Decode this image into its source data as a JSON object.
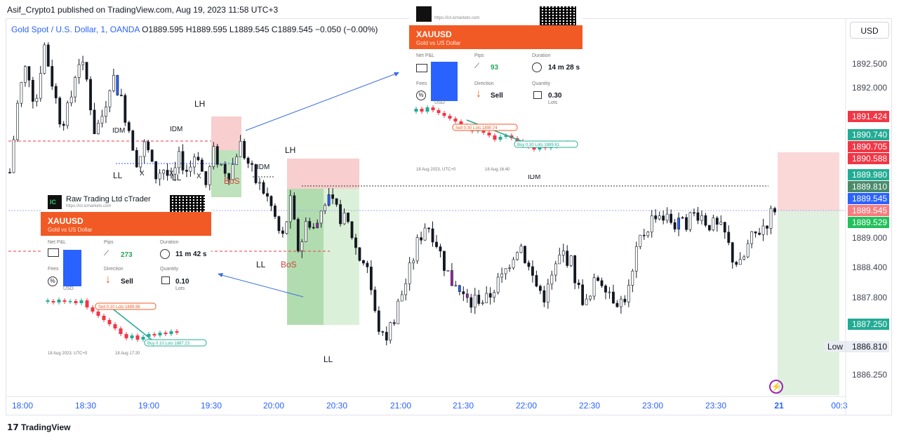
{
  "header": {
    "published": "Asif_Crypto1 published on TradingView.com, Aug 19, 2023 11:58 UTC+3",
    "symbol": "Gold Spot / U.S. Dollar, 1, OANDA",
    "ohlc": "O1889.595  H1889.595  L1889.545  C1889.545  −0.050 (−0.00%)",
    "currency_button": "USD"
  },
  "footer": {
    "brand": "TradingView"
  },
  "colors": {
    "up": "#ffffff",
    "down": "#131722",
    "purple": "#9c27b0",
    "blue": "#2962ff",
    "red_zone": "#f7c9c9",
    "green_zone": "#b7dfb5",
    "sell_red": "#f23645",
    "buy_green": "#22ab94"
  },
  "chart_data": {
    "type": "candlestick",
    "symbol": "XAUUSD 1m",
    "ylim": [
      1885.8,
      1893.3
    ],
    "x_ticks": [
      "18:00",
      "18:30",
      "19:00",
      "19:30",
      "20:00",
      "20:30",
      "21:00",
      "21:30",
      "22:00",
      "22:30",
      "23:00",
      "23:30",
      "21",
      "00:3"
    ],
    "y_ticks": [
      "1892.500",
      "1892.000",
      "1889.000",
      "1888.400",
      "1887.800",
      "1886.250"
    ],
    "price_labels": [
      {
        "text": "1891.424",
        "color": "#f23645"
      },
      {
        "text": "1890.740",
        "color": "#22ab94"
      },
      {
        "text": "1890.705",
        "color": "#f23645"
      },
      {
        "text": "1890.588",
        "color": "#f23645"
      },
      {
        "text": "1889.980",
        "color": "#22ab94"
      },
      {
        "text": "1889.810",
        "color": "#4a8a6a"
      },
      {
        "text": "1889.545",
        "color": "#2962ff"
      },
      {
        "text": "1889.545",
        "color": "#f77c80"
      },
      {
        "text": "1889.529",
        "color": "#22c05a"
      },
      {
        "text": "1887.250",
        "color": "#22ab94"
      },
      {
        "text": "1886.810",
        "color": "#e9ecf2",
        "prefix": "Low"
      }
    ],
    "annotations": [
      "IDM",
      "IDM",
      "LH",
      "LL",
      "X",
      "X",
      "LL",
      "X",
      "BoS",
      "IDM",
      "LH",
      "LL",
      "BoS",
      "LL",
      "IDM"
    ],
    "close_path": [
      1890.3,
      1891.8,
      1892.5,
      1891.6,
      1892.9,
      1892.1,
      1891.3,
      1891.6,
      1892.6,
      1892.2,
      1891.1,
      1891.5,
      1892.3,
      1891.8,
      1891.2,
      1890.5,
      1890.9,
      1890.2,
      1890.4,
      1890.1,
      1890.6,
      1890.3,
      1890.8,
      1890.0,
      1890.7,
      1890.4,
      1890.3,
      1890.9,
      1890.5,
      1890.1,
      1889.9,
      1889.5,
      1888.9,
      1889.7,
      1888.7,
      1889.4,
      1889.1,
      1889.8,
      1889.6,
      1889.4,
      1889.2,
      1888.6,
      1888.5,
      1887.4,
      1886.9,
      1887.3,
      1887.8,
      1888.3,
      1888.9,
      1889.3,
      1889.0,
      1888.5,
      1888.1,
      1887.9,
      1887.6,
      1887.8,
      1887.7,
      1888.0,
      1888.2,
      1888.6,
      1888.9,
      1888.4,
      1888.0,
      1887.8,
      1888.3,
      1888.7,
      1888.5,
      1887.9,
      1887.6,
      1888.2,
      1888.1,
      1887.8,
      1887.7,
      1888.0,
      1888.9,
      1889.2,
      1889.5,
      1889.4,
      1889.3,
      1889.2,
      1889.4,
      1889.5,
      1889.3,
      1889.2,
      1889.1,
      1888.6,
      1888.4,
      1888.9,
      1889.1,
      1889.3,
      1889.6
    ]
  },
  "zones": [
    {
      "name": "supply-zone-1"
    },
    {
      "name": "demand-zone-1"
    },
    {
      "name": "supply-zone-2"
    },
    {
      "name": "demand-zone-2"
    },
    {
      "name": "sl-zone-right"
    },
    {
      "name": "tp-zone-right"
    }
  ],
  "cards": {
    "left": {
      "broker": "Raw Trading Ltd cTrader",
      "symbol": "XAUUSD",
      "desc": "Gold vs US Dollar",
      "net_pl_label": "Net P&L",
      "pips_label": "Pips",
      "pips": "273",
      "duration_label": "Duration",
      "duration": "11 m 42 s",
      "fees_label": "Fees",
      "direction_label": "Direction",
      "direction": "Sell",
      "quantity_label": "Quantity",
      "quantity": "0.10",
      "lots": "Lots",
      "currency": "USD",
      "date1": "18 Aug 2023, UTC+0",
      "date2": "18 Aug 17:20",
      "sell_tag": "Sell   0.10 Lots   1889.96",
      "buy_tag": "Buy   0.10 Lots   1887.23"
    },
    "right": {
      "symbol": "XAUUSD",
      "desc": "Gold vs US Dollar",
      "net_pl_label": "Net P&L",
      "pips_label": "Pips",
      "pips": "93",
      "duration_label": "Duration",
      "duration": "14 m 28 s",
      "fees_label": "Fees",
      "direction_label": "Direction",
      "direction": "Sell",
      "quantity_label": "Quantity",
      "quantity": "0.30",
      "lots": "Lots",
      "currency": "USD",
      "date1": "18 Aug 2023, UTC+0",
      "date2": "18 Aug 16:40",
      "sell_tag": "Sell   0.30 Lots   1890.74",
      "buy_tag": "Buy   0.30 Lots   1889.81"
    }
  }
}
